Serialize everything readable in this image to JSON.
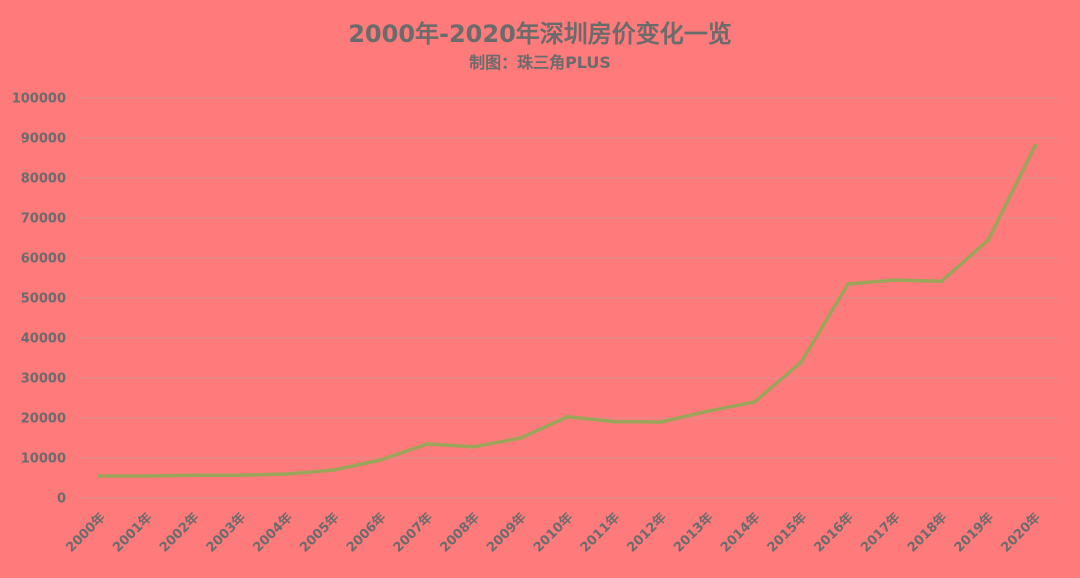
{
  "chart_data": {
    "type": "line",
    "title": "2000年-2020年深圳房价变化一览",
    "subtitle": "制图：珠三角PLUS",
    "xlabel": "",
    "ylabel": "",
    "ylim": [
      0,
      100000
    ],
    "yticks": [
      "0",
      "10000",
      "20000",
      "30000",
      "40000",
      "50000",
      "60000",
      "70000",
      "80000",
      "90000",
      "100000"
    ],
    "categories": [
      "2000年",
      "2001年",
      "2002年",
      "2003年",
      "2004年",
      "2005年",
      "2006年",
      "2007年",
      "2008年",
      "2009年",
      "2010年",
      "2011年",
      "2012年",
      "2013年",
      "2014年",
      "2015年",
      "2016年",
      "2017年",
      "2018年",
      "2019年",
      "2020年"
    ],
    "series": [
      {
        "values": [
          5500,
          5500,
          5700,
          5700,
          6000,
          7000,
          9500,
          13500,
          12800,
          15000,
          20300,
          19100,
          19000,
          21700,
          24000,
          34000,
          53500,
          54500,
          54200,
          64500,
          88000
        ],
        "color": "#9BA55A"
      }
    ],
    "grid": true,
    "legend": "none",
    "colors": {
      "background": "#FF7A7A",
      "gridline": "#E58A8A",
      "text": "#6B6B6B",
      "line": "#9BA55A"
    }
  }
}
